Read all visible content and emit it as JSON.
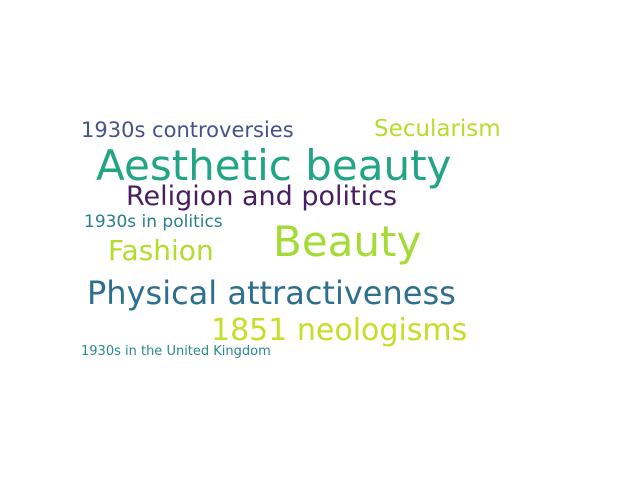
{
  "words": [
    {
      "text": "1930s controversies",
      "color": "#46538a"
    },
    {
      "text": "Secularism",
      "color": "#b5dd2b"
    },
    {
      "text": "Aesthetic beauty",
      "color": "#22a585"
    },
    {
      "text": "Religion and politics",
      "color": "#471d63"
    },
    {
      "text": "1930s in politics",
      "color": "#2a7f8e"
    },
    {
      "text": "Beauty",
      "color": "#a4db36"
    },
    {
      "text": "Fashion",
      "color": "#b2dd2c"
    },
    {
      "text": "Physical attractiveness",
      "color": "#2e6f8e"
    },
    {
      "text": "1851 neologisms",
      "color": "#c4df27"
    },
    {
      "text": "1930s in the United Kingdom",
      "color": "#2a8a8c"
    }
  ]
}
